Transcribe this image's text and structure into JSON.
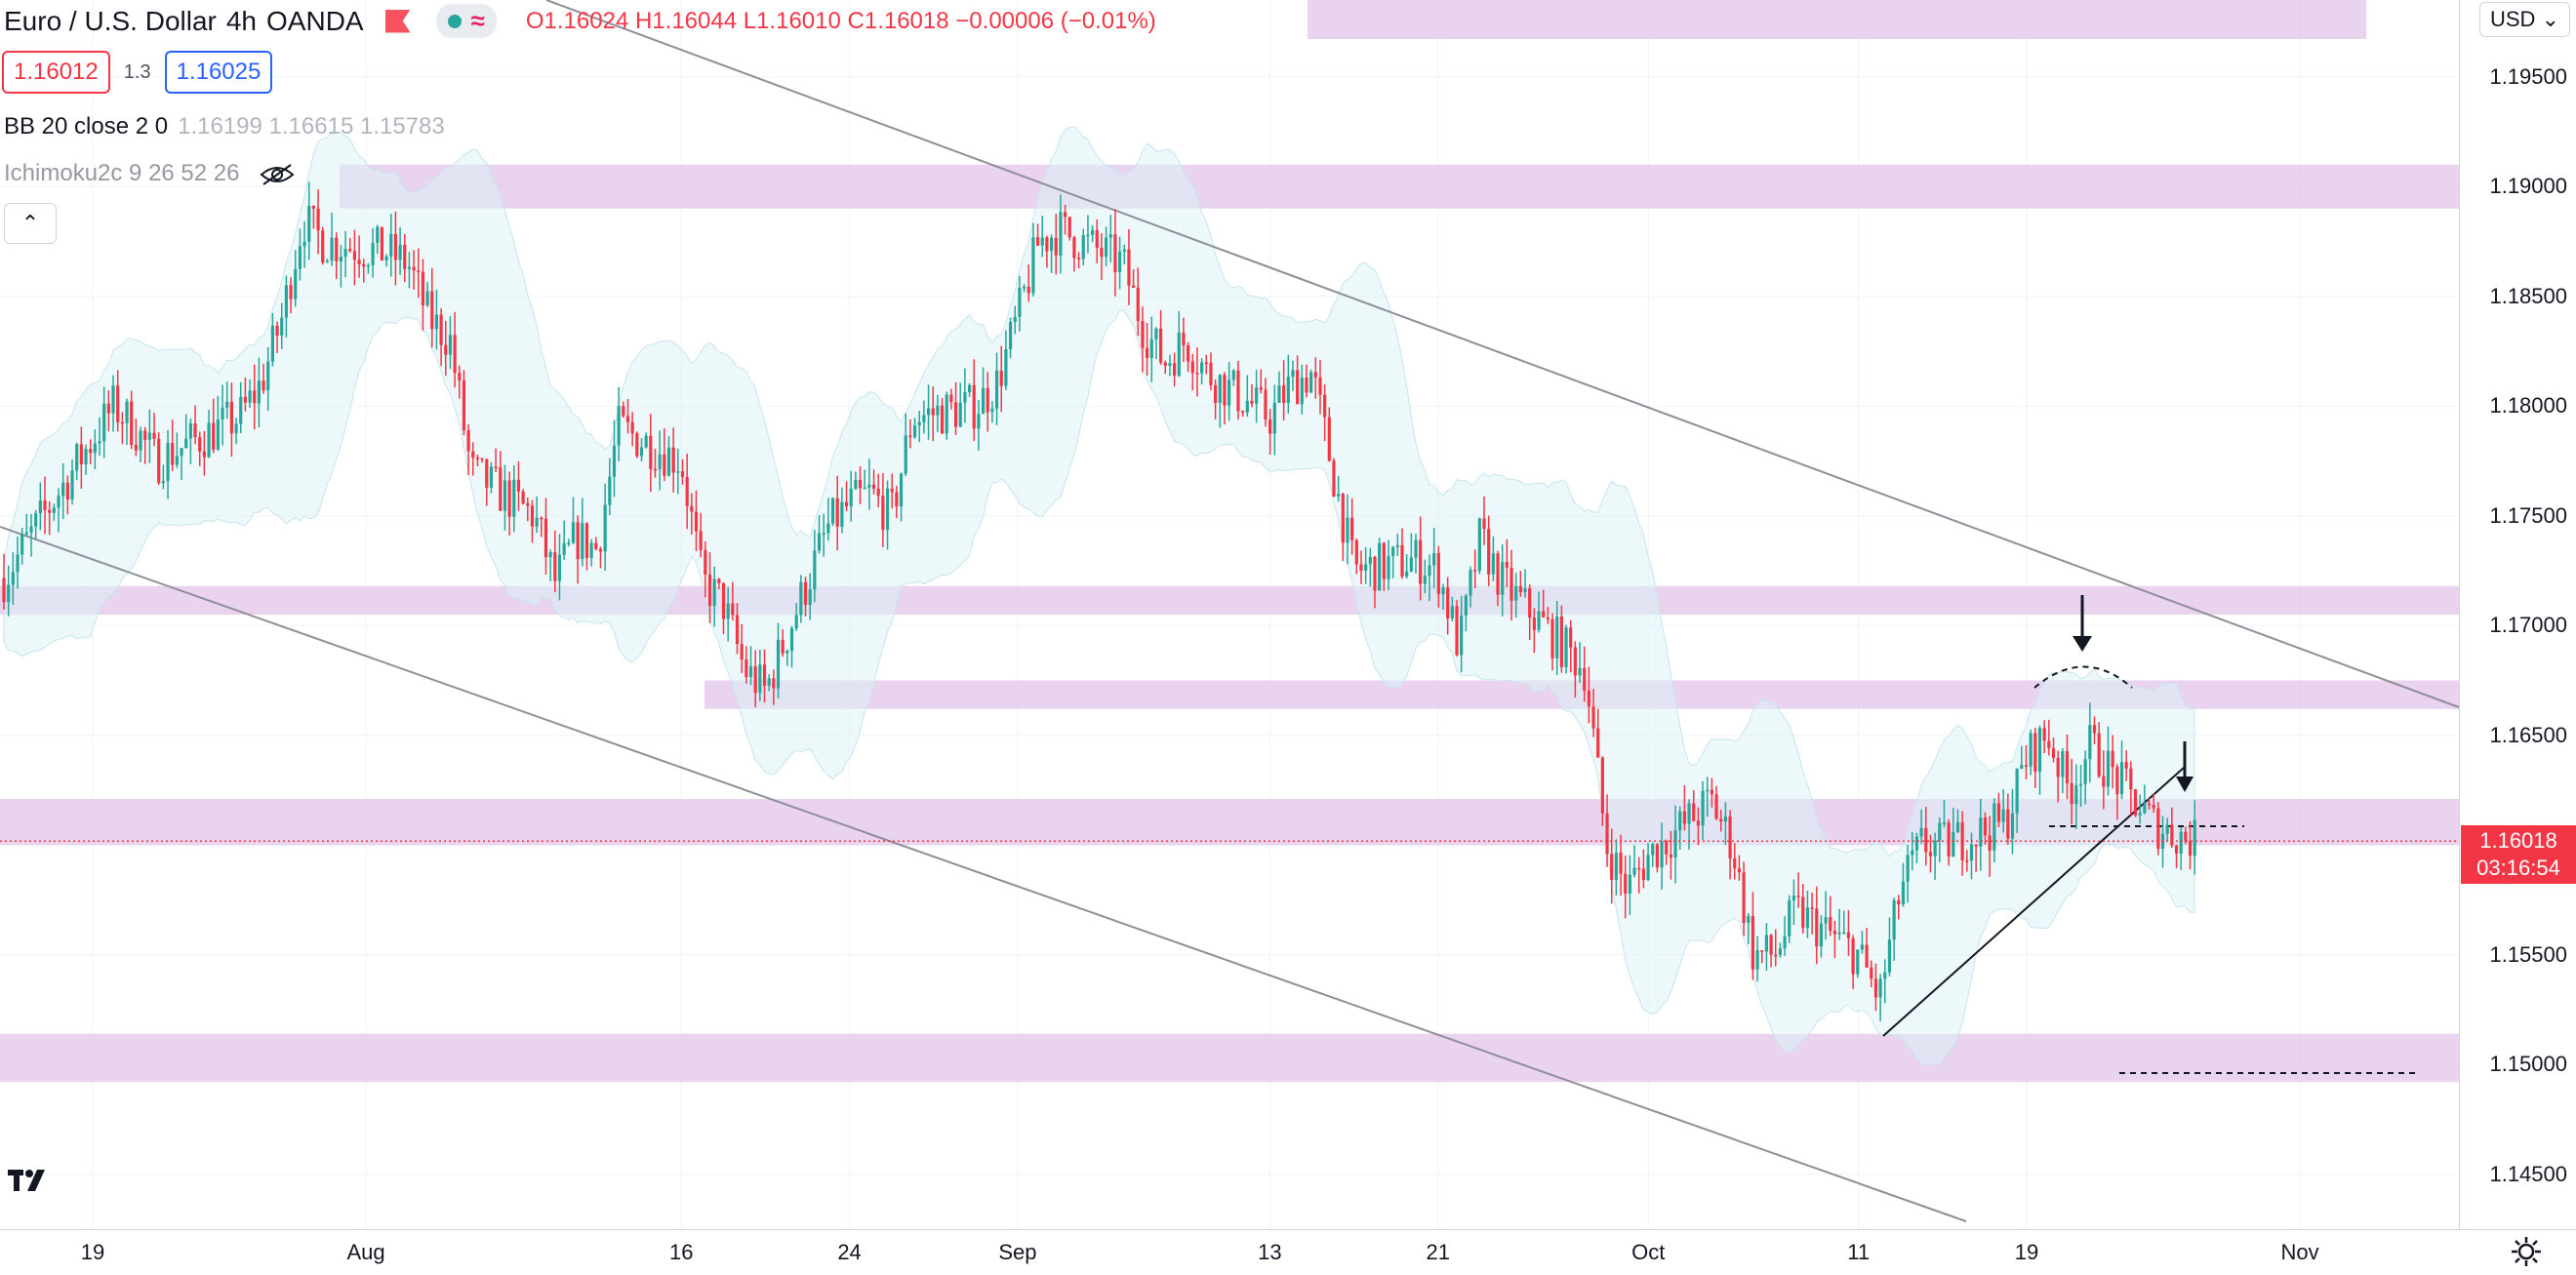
{
  "legend": {
    "title": "Euro / U.S. Dollar",
    "interval": "4h",
    "broker": "OANDA",
    "open": "O1.16024",
    "high": "H1.16044",
    "low": "L1.16010",
    "close": "C1.16018",
    "change": "−0.00006 (−0.01%)"
  },
  "quote": {
    "sell": "1.16012",
    "spread": "1.3",
    "buy": "1.16025"
  },
  "indicators": {
    "bb": {
      "name": "BB 20 close 2 0",
      "values": "1.16199  1.16615  1.15783"
    },
    "ichimoku": {
      "name": "Ichimoku2c 9 26 52 26"
    }
  },
  "currency": "USD",
  "last_price": {
    "value": "1.16018",
    "countdown": "03:16:54"
  },
  "colors": {
    "up": "#26a69a",
    "down": "#f23645",
    "zone": "#e1c4ea",
    "band": "#dff3f6"
  },
  "chart_data": {
    "type": "candlestick",
    "ylim": [
      1.1425,
      1.1985
    ],
    "y_ticks": [
      "1.19500",
      "1.19000",
      "1.18500",
      "1.18000",
      "1.17500",
      "1.17000",
      "1.16500",
      "1.16000",
      "1.15500",
      "1.15000",
      "1.14500"
    ],
    "x_ticks": [
      "19",
      "Aug",
      "16",
      "24",
      "Sep",
      "13",
      "21",
      "Oct",
      "11",
      "19",
      "Nov"
    ],
    "x_tick_dates": [
      "2021-07-19",
      "2021-08-01",
      "2021-08-16",
      "2021-08-24",
      "2021-09-01",
      "2021-09-13",
      "2021-09-21",
      "2021-10-01",
      "2021-10-11",
      "2021-10-19",
      "2021-11-01"
    ],
    "price_path": [
      [
        "2021-07-19",
        1.1785
      ],
      [
        "2021-07-20",
        1.18
      ],
      [
        "2021-07-21",
        1.179
      ],
      [
        "2021-07-22",
        1.1775
      ],
      [
        "2021-07-23",
        1.178
      ],
      [
        "2021-07-26",
        1.1795
      ],
      [
        "2021-07-27",
        1.181
      ],
      [
        "2021-07-28",
        1.184
      ],
      [
        "2021-07-29",
        1.1885
      ],
      [
        "2021-07-30",
        1.1875
      ],
      [
        "2021-08-02",
        1.187
      ],
      [
        "2021-08-03",
        1.1865
      ],
      [
        "2021-08-04",
        1.184
      ],
      [
        "2021-08-05",
        1.183
      ],
      [
        "2021-08-06",
        1.177
      ],
      [
        "2021-08-09",
        1.175
      ],
      [
        "2021-08-10",
        1.172
      ],
      [
        "2021-08-11",
        1.174
      ],
      [
        "2021-08-12",
        1.1735
      ],
      [
        "2021-08-13",
        1.179
      ],
      [
        "2021-08-16",
        1.1775
      ],
      [
        "2021-08-17",
        1.172
      ],
      [
        "2021-08-18",
        1.171
      ],
      [
        "2021-08-19",
        1.168
      ],
      [
        "2021-08-20",
        1.167
      ],
      [
        "2021-08-23",
        1.1745
      ],
      [
        "2021-08-24",
        1.1755
      ],
      [
        "2021-08-25",
        1.176
      ],
      [
        "2021-08-26",
        1.175
      ],
      [
        "2021-08-27",
        1.1795
      ],
      [
        "2021-08-30",
        1.18
      ],
      [
        "2021-08-31",
        1.181
      ],
      [
        "2021-09-01",
        1.184
      ],
      [
        "2021-09-02",
        1.1875
      ],
      [
        "2021-09-03",
        1.188
      ],
      [
        "2021-09-06",
        1.1865
      ],
      [
        "2021-09-07",
        1.1835
      ],
      [
        "2021-09-08",
        1.182
      ],
      [
        "2021-09-09",
        1.183
      ],
      [
        "2021-09-10",
        1.1815
      ],
      [
        "2021-09-13",
        1.1795
      ],
      [
        "2021-09-14",
        1.181
      ],
      [
        "2021-09-15",
        1.1815
      ],
      [
        "2021-09-16",
        1.177
      ],
      [
        "2021-09-17",
        1.1725
      ],
      [
        "2021-09-20",
        1.173
      ],
      [
        "2021-09-21",
        1.1725
      ],
      [
        "2021-09-22",
        1.169
      ],
      [
        "2021-09-23",
        1.174
      ],
      [
        "2021-09-24",
        1.172
      ],
      [
        "2021-09-27",
        1.169
      ],
      [
        "2021-09-28",
        1.168
      ],
      [
        "2021-09-29",
        1.16
      ],
      [
        "2021-09-30",
        1.158
      ],
      [
        "2021-10-01",
        1.1595
      ],
      [
        "2021-10-04",
        1.162
      ],
      [
        "2021-10-05",
        1.16
      ],
      [
        "2021-10-06",
        1.155
      ],
      [
        "2021-10-07",
        1.155
      ],
      [
        "2021-10-08",
        1.157
      ],
      [
        "2021-10-11",
        1.155
      ],
      [
        "2021-10-12",
        1.153
      ],
      [
        "2021-10-13",
        1.158
      ],
      [
        "2021-10-14",
        1.16
      ],
      [
        "2021-10-15",
        1.16
      ],
      [
        "2021-10-18",
        1.161
      ],
      [
        "2021-10-19",
        1.164
      ],
      [
        "2021-10-20",
        1.165
      ],
      [
        "2021-10-21",
        1.1625
      ],
      [
        "2021-10-22",
        1.1645
      ],
      [
        "2021-10-25",
        1.161
      ],
      [
        "2021-10-26",
        1.1605
      ],
      [
        "2021-10-27",
        1.1602
      ]
    ],
    "zones": [
      [
        1.189,
        1.191
      ],
      [
        1.1705,
        1.1718
      ],
      [
        1.1662,
        1.1675
      ],
      [
        1.16,
        1.1621
      ],
      [
        1.1492,
        1.1514
      ]
    ]
  }
}
